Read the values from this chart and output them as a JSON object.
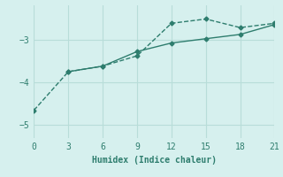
{
  "line1_x": [
    0,
    3,
    6,
    9,
    12,
    15,
    18,
    21
  ],
  "line1_y": [
    -4.65,
    -3.75,
    -3.62,
    -3.38,
    -2.62,
    -2.52,
    -2.72,
    -2.62
  ],
  "line2_x": [
    3,
    6,
    9,
    12,
    15,
    18,
    21
  ],
  "line2_y": [
    -3.75,
    -3.62,
    -3.28,
    -3.08,
    -2.98,
    -2.88,
    -2.65
  ],
  "line_color": "#2e7d6e",
  "background_color": "#d6f0ee",
  "grid_color": "#b8ddd9",
  "xlabel": "Humidex (Indice chaleur)",
  "xlim": [
    0,
    21
  ],
  "ylim": [
    -5.3,
    -2.2
  ],
  "xticks": [
    0,
    3,
    6,
    9,
    12,
    15,
    18,
    21
  ],
  "yticks": [
    -5,
    -4,
    -3
  ],
  "xlabel_fontsize": 7,
  "tick_fontsize": 7,
  "marker": "D",
  "markersize": 2.5,
  "linewidth": 1.0
}
